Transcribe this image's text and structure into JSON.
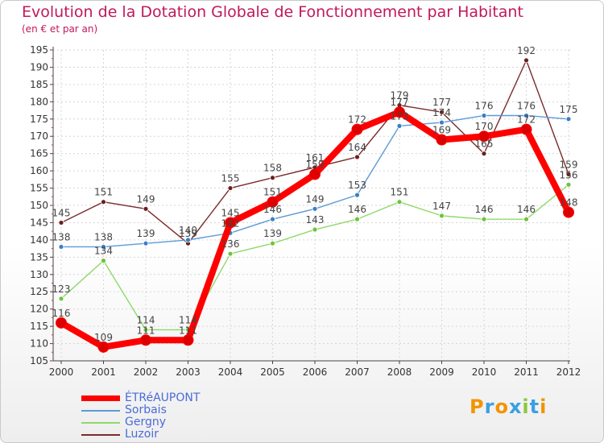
{
  "page": {
    "title": "Evolution de la Dotation Globale de Fonctionnement par Habitant",
    "subtitle": "(en € et par an)"
  },
  "logo": {
    "text": "Proxiti"
  },
  "chart_data": {
    "type": "line",
    "title": "Evolution de la Dotation Globale de Fonctionnement par Habitant",
    "subtitle": "(en € et par an)",
    "xlabel": "",
    "ylabel": "",
    "categories": [
      "2000",
      "2001",
      "2002",
      "2003",
      "2004",
      "2005",
      "2006",
      "2007",
      "2008",
      "2009",
      "2010",
      "2011",
      "2012"
    ],
    "ylim": [
      105,
      195
    ],
    "yticks": [
      105,
      110,
      115,
      120,
      125,
      130,
      135,
      140,
      145,
      150,
      155,
      160,
      165,
      170,
      175,
      180,
      185,
      190,
      195
    ],
    "grid": true,
    "legend_position": "bottom-left",
    "series": [
      {
        "name": "ÉTRéAUPONT",
        "color": "#ff0000",
        "marker_color": "#dd0000",
        "values": [
          116,
          109,
          111,
          111,
          145,
          151,
          159,
          172,
          177,
          169,
          170,
          172,
          148
        ],
        "labels": [
          "116",
          "109",
          "111",
          "111",
          "145",
          "151",
          "159",
          "172",
          "177",
          "169",
          "170",
          "172",
          "148"
        ]
      },
      {
        "name": "Sorbais",
        "color": "#5b9bd5",
        "marker_color": "#3b7fc4",
        "values": [
          138,
          138,
          139,
          140,
          142,
          146,
          149,
          153,
          173,
          174,
          176,
          176,
          175
        ],
        "labels": [
          "138",
          "138",
          "139",
          "140",
          "142",
          "146",
          "149",
          "153",
          "173",
          "174",
          "176",
          "176",
          "175"
        ]
      },
      {
        "name": "Gergny",
        "color": "#8fd96a",
        "marker_color": "#6cc43d",
        "values": [
          123,
          134,
          114,
          114,
          136,
          139,
          143,
          146,
          151,
          147,
          146,
          146,
          156
        ],
        "labels": [
          "123",
          "134",
          "114",
          "114",
          "136",
          "139",
          "143",
          "146",
          "151",
          "147",
          "146",
          "146",
          "156"
        ]
      },
      {
        "name": "Luzoir",
        "color": "#7a2b2b",
        "marker_color": "#6b1f1f",
        "values": [
          145,
          151,
          149,
          139,
          155,
          158,
          161,
          164,
          179,
          177,
          165,
          192,
          159
        ],
        "labels": [
          "145",
          "151",
          "149",
          "139",
          "155",
          "158",
          "161",
          "164",
          "179",
          "177",
          "165",
          "192",
          "159"
        ]
      }
    ]
  }
}
